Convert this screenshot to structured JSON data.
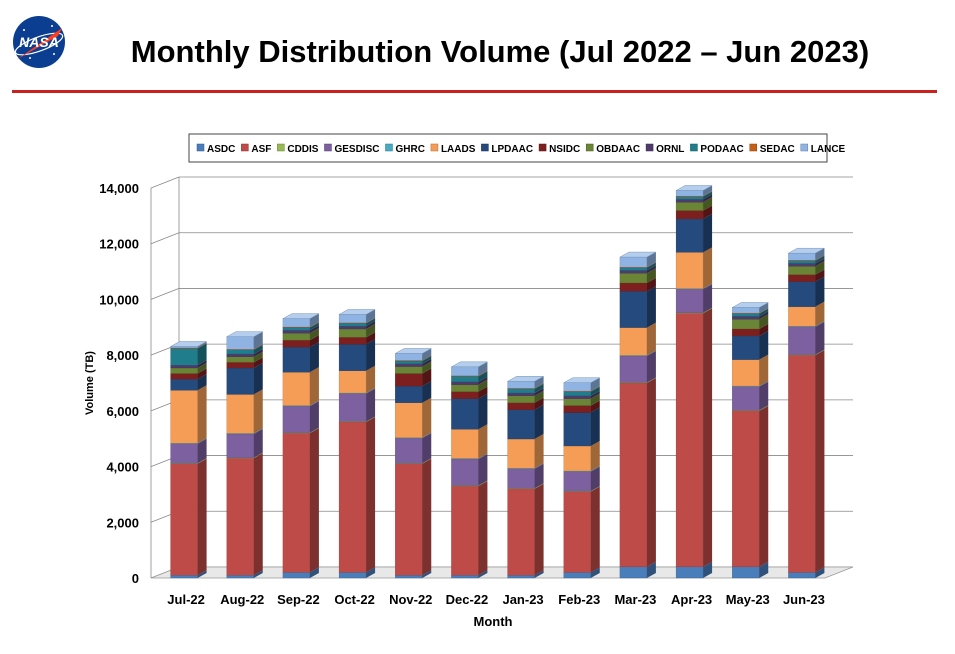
{
  "slide": {
    "title": "Monthly Distribution Volume (Jul 2022 – Jun 2023)",
    "logo_text": "NASA"
  },
  "chart_data": {
    "type": "bar",
    "stacked": true,
    "style": "3d",
    "title": "",
    "xlabel": "Month",
    "ylabel": "Volume (TB)",
    "ylim": [
      0,
      14000
    ],
    "yticks": [
      0,
      2000,
      4000,
      6000,
      8000,
      10000,
      12000,
      14000
    ],
    "ytick_labels": [
      "0",
      "2,000",
      "4,000",
      "6,000",
      "8,000",
      "10,000",
      "12,000",
      "14,000"
    ],
    "grid": true,
    "legend_position": "top",
    "categories": [
      "Jul-22",
      "Aug-22",
      "Sep-22",
      "Oct-22",
      "Nov-22",
      "Dec-22",
      "Jan-23",
      "Feb-23",
      "Mar-23",
      "Apr-23",
      "May-23",
      "Jun-23"
    ],
    "series": [
      {
        "name": "ASDC",
        "color": "#4a7ebb",
        "values": [
          100,
          100,
          200,
          200,
          100,
          100,
          100,
          200,
          400,
          400,
          400,
          200
        ]
      },
      {
        "name": "ASF",
        "color": "#be4b48",
        "values": [
          4000,
          4200,
          5000,
          5400,
          4000,
          3200,
          3100,
          2900,
          6600,
          9100,
          5600,
          7800
        ]
      },
      {
        "name": "CDDIS",
        "color": "#98b954",
        "values": [
          20,
          20,
          20,
          20,
          20,
          20,
          20,
          20,
          20,
          20,
          20,
          20
        ]
      },
      {
        "name": "GESDISC",
        "color": "#7d60a0",
        "values": [
          700,
          850,
          950,
          1000,
          900,
          950,
          700,
          700,
          950,
          850,
          850,
          1000
        ]
      },
      {
        "name": "GHRC",
        "color": "#46aac5",
        "values": [
          20,
          20,
          20,
          20,
          20,
          20,
          20,
          20,
          20,
          20,
          20,
          20
        ]
      },
      {
        "name": "LAADS",
        "color": "#f59d56",
        "values": [
          1900,
          1400,
          1200,
          800,
          1250,
          1050,
          1050,
          900,
          1000,
          1300,
          950,
          700
        ]
      },
      {
        "name": "LPDAAC",
        "color": "#254a7d",
        "values": [
          400,
          950,
          900,
          950,
          600,
          1100,
          1050,
          1200,
          1300,
          1200,
          850,
          900
        ]
      },
      {
        "name": "NSIDC",
        "color": "#7e1f1f",
        "values": [
          200,
          200,
          250,
          250,
          450,
          250,
          250,
          250,
          300,
          300,
          250,
          250
        ]
      },
      {
        "name": "OBDAAC",
        "color": "#6a8535",
        "values": [
          200,
          200,
          250,
          300,
          250,
          250,
          250,
          250,
          350,
          300,
          350,
          300
        ]
      },
      {
        "name": "ORNL",
        "color": "#4f3a6e",
        "values": [
          100,
          100,
          100,
          100,
          100,
          100,
          100,
          100,
          100,
          100,
          100,
          100
        ]
      },
      {
        "name": "PODAAC",
        "color": "#1f7d8c",
        "values": [
          600,
          150,
          100,
          100,
          100,
          200,
          150,
          150,
          100,
          100,
          100,
          100
        ]
      },
      {
        "name": "SEDAC",
        "color": "#c65e18",
        "values": [
          20,
          20,
          20,
          20,
          20,
          20,
          20,
          20,
          20,
          20,
          20,
          20
        ]
      },
      {
        "name": "LANCE",
        "color": "#8fb4e3",
        "values": [
          50,
          450,
          300,
          300,
          250,
          320,
          250,
          300,
          360,
          200,
          200,
          250
        ]
      }
    ]
  }
}
